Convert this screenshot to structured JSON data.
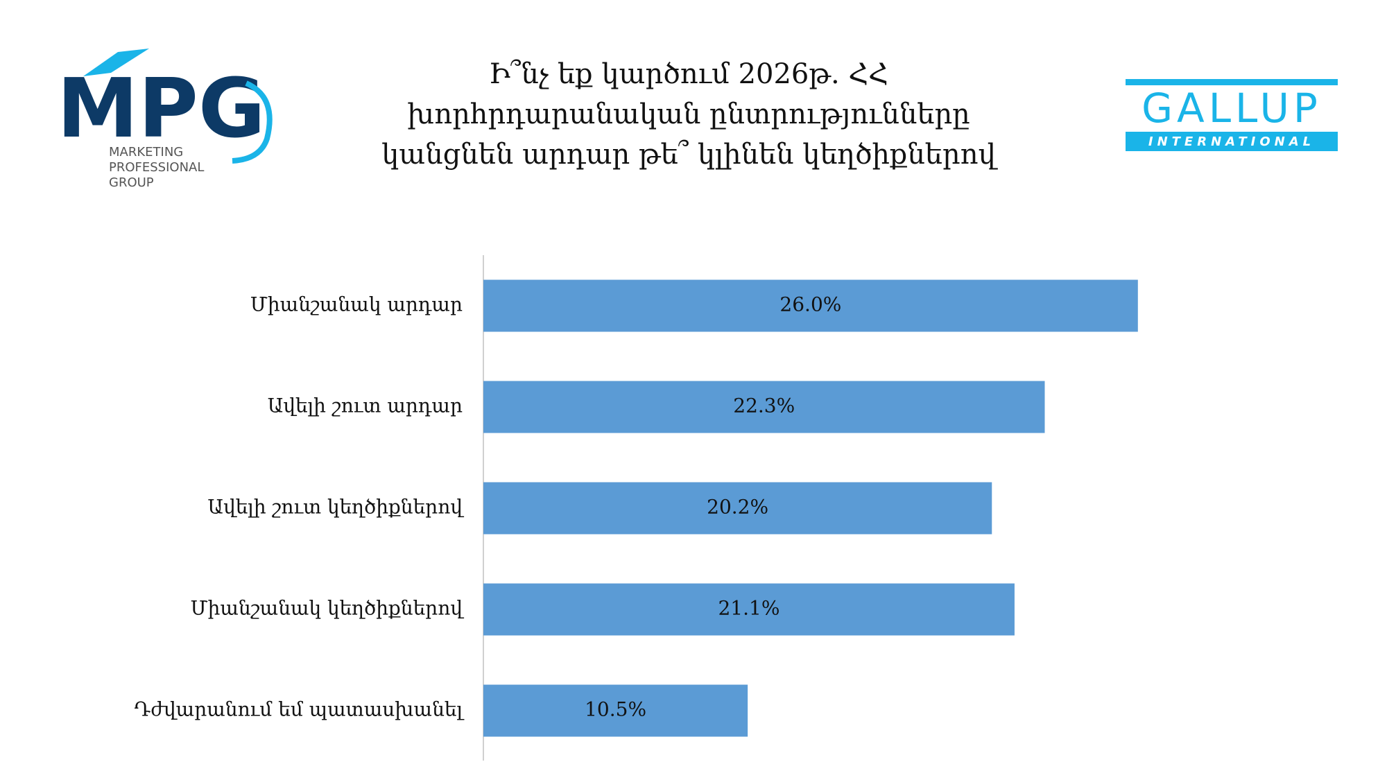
{
  "logos": {
    "left": {
      "mark": "MPG",
      "lines": [
        "MARKETING",
        "PROFESSIONAL",
        "GROUP"
      ]
    },
    "right": {
      "name": "GALLUP",
      "sub": "INTERNATIONAL"
    }
  },
  "chart_data": {
    "type": "barh",
    "title": "Ի՞նչ եք կարծում 2026թ. ՀՀ խորհրդարանական ընտրությունները կանցնեն արդար թե՞ կլինեն կեղծիքներով",
    "categories": [
      "Միանշանակ արդար",
      "Ավելի շուտ արդար",
      "Ավելի շուտ կեղծիքներով",
      "Միանշանակ կեղծիքներով",
      "Դժվարանում եմ պատասխանել"
    ],
    "values": [
      26.0,
      22.3,
      20.2,
      21.1,
      10.5
    ],
    "value_labels": [
      "26.0%",
      "22.3%",
      "20.2%",
      "21.1%",
      "10.5%"
    ],
    "color": "#5b9bd5"
  }
}
